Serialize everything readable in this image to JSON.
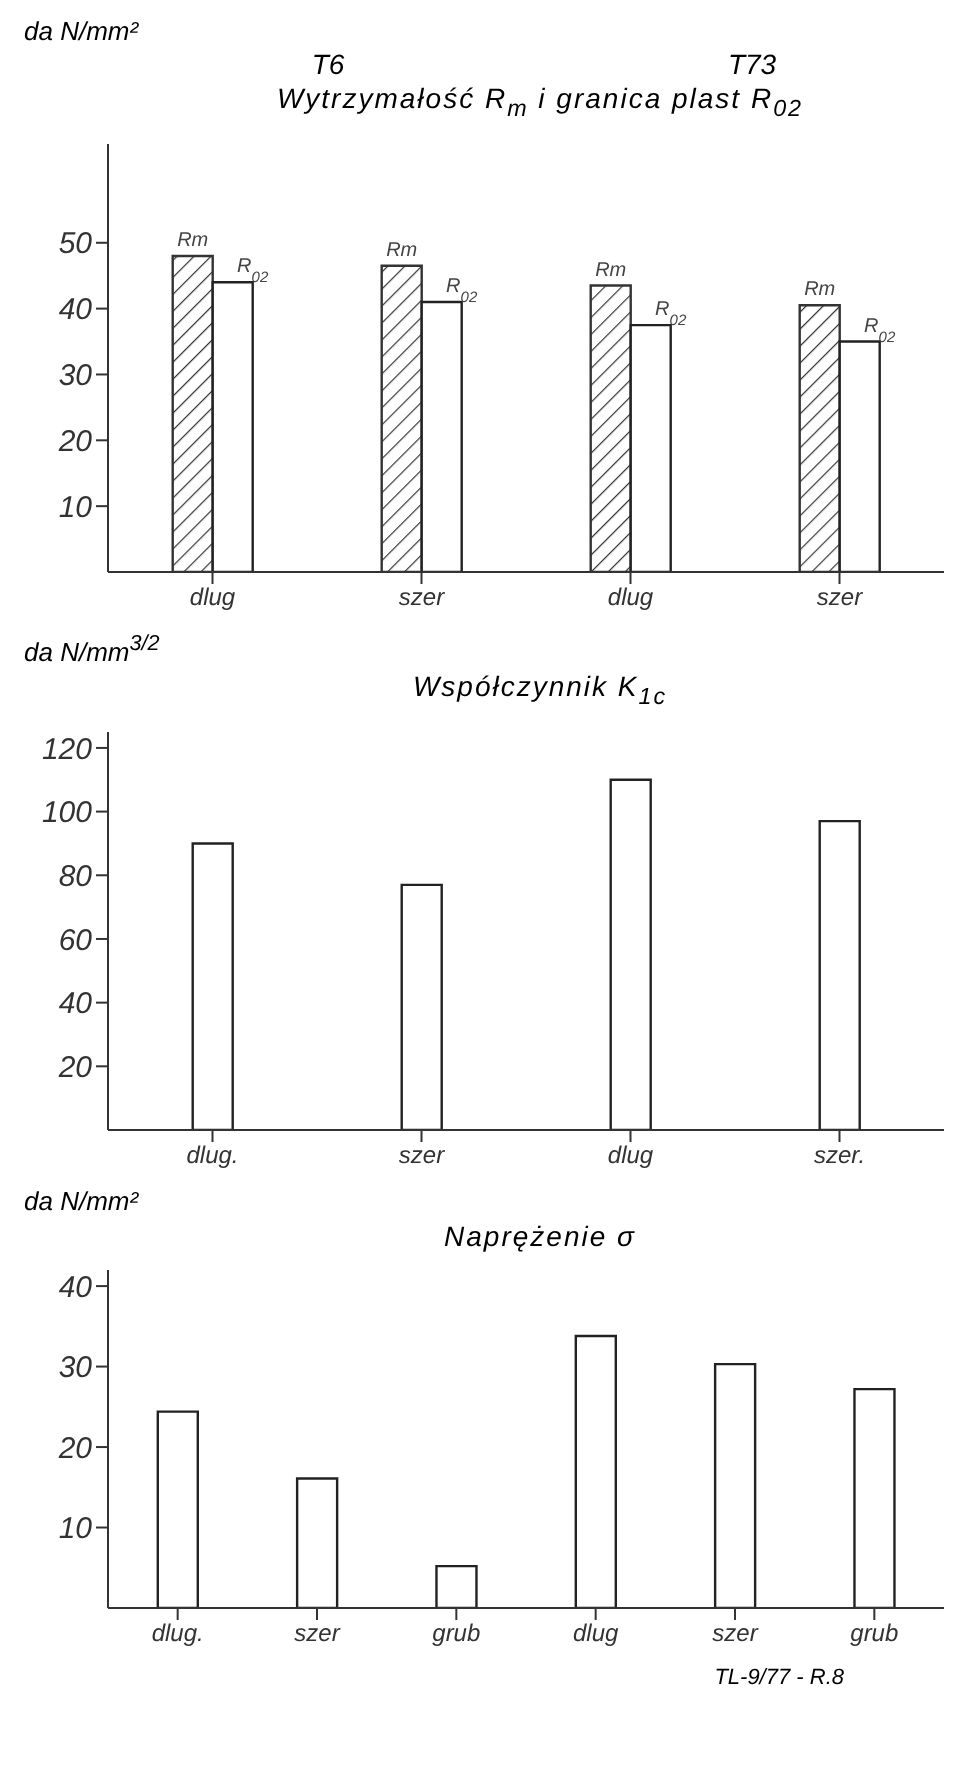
{
  "chart_data": [
    {
      "type": "bar",
      "title": "Wytrzymałość R$_{m}$ i granica plast R$_{02}$",
      "ylabel": "da N/mm²",
      "annotations": [
        "T6",
        "T73"
      ],
      "categories": [
        "dlug",
        "szer",
        "dlug",
        "szer"
      ],
      "series": [
        {
          "name": "Rm",
          "color": "#333333",
          "values": [
            48,
            46.5,
            43.5,
            40.5
          ]
        },
        {
          "name": "R$_{02}$",
          "color": "#ffffff",
          "values": [
            44,
            41,
            37.5,
            35
          ]
        }
      ],
      "ylim": [
        0,
        65
      ],
      "yticks": [
        10,
        20,
        30,
        40,
        50
      ],
      "grid": false,
      "legend": false
    },
    {
      "type": "bar",
      "title": "Współczynnik K$_{1c}$",
      "ylabel": "da N/mm$^{3/2}$",
      "categories": [
        "dlug.",
        "szer",
        "dlug",
        "szer."
      ],
      "values": [
        90,
        77,
        110,
        97
      ],
      "color": "#ffffff",
      "ylim": [
        0,
        125
      ],
      "yticks": [
        20,
        40,
        60,
        80,
        100,
        120
      ],
      "grid": false,
      "legend": false
    },
    {
      "type": "bar",
      "title": "Naprężenie σ",
      "ylabel": "da N/mm²",
      "annotations": [
        "TL-9/77 - R.8"
      ],
      "categories": [
        "dlug.",
        "szer",
        "grub",
        "dlug",
        "szer",
        "grub"
      ],
      "values": [
        24.4,
        16.1,
        5.2,
        33.8,
        30.3,
        27.2
      ],
      "color": "#ffffff",
      "ylim": [
        0,
        42
      ],
      "yticks": [
        10,
        20,
        30,
        40
      ],
      "grid": false,
      "legend": false
    }
  ]
}
